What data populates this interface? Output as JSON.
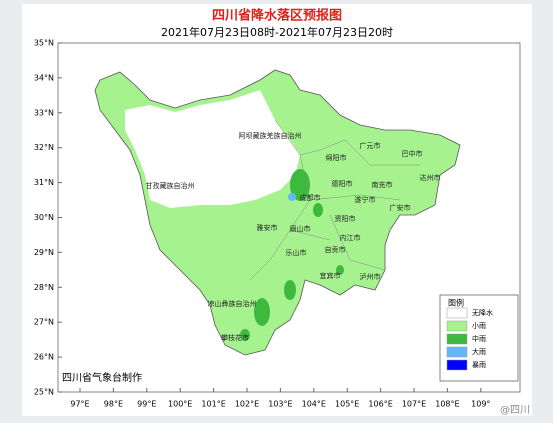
{
  "header": {
    "title": "四川省降水落区预报图",
    "subtitle": "2021年07月23日08时-2021年07月23日20时"
  },
  "lat_labels": [
    "35°N",
    "34°N",
    "33°N",
    "32°N",
    "31°N",
    "30°N",
    "29°N",
    "28°N",
    "27°N",
    "26°N",
    "25°N"
  ],
  "lon_labels": [
    "97°E",
    "98°E",
    "99°E",
    "100°E",
    "101°E",
    "102°E",
    "103°E",
    "104°E",
    "105°E",
    "106°E",
    "107°E",
    "108°E",
    "109°"
  ],
  "regions": [
    "阿坝藏族羌族自治州",
    "甘孜藏族自治州",
    "凉山彝族自治州",
    "攀枝花市",
    "广元市",
    "巴中市",
    "绵阳市",
    "达州市",
    "德阳市",
    "南充市",
    "成都市",
    "遂宁市",
    "广安市",
    "资阳市",
    "雅安市",
    "眉山市",
    "内江市",
    "乐山市",
    "自贡市",
    "宜宾市",
    "泸州市"
  ],
  "legend": {
    "title": "图例",
    "items": [
      {
        "label": "无降水",
        "color": "#ffffff"
      },
      {
        "label": "小雨",
        "color": "#a6f28f"
      },
      {
        "label": "中雨",
        "color": "#3dba3d"
      },
      {
        "label": "大雨",
        "color": "#61b8ff"
      },
      {
        "label": "暴雨",
        "color": "#0000fe"
      }
    ]
  },
  "footer": "四川省气象台制作",
  "watermark": "@四川"
}
